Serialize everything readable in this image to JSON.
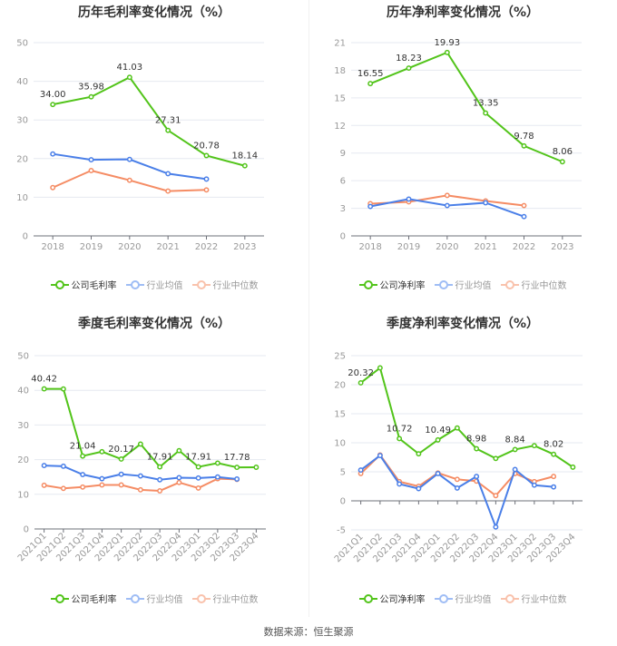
{
  "colors": {
    "company": "#52c41a",
    "avg": "#4a7fe8",
    "median": "#f58c64",
    "grid": "#e6e9f0",
    "axis": "#999999"
  },
  "legend_labels": {
    "annual_gross": [
      "公司毛利率",
      "行业均值",
      "行业中位数"
    ],
    "annual_net": [
      "公司净利率",
      "行业均值",
      "行业中位数"
    ],
    "quarterly_gross": [
      "公司毛利率",
      "行业均值",
      "行业中位数"
    ],
    "quarterly_net": [
      "公司净利率",
      "行业均值",
      "行业中位数"
    ]
  },
  "footer": "数据来源：恒生聚源",
  "chart_data": [
    {
      "type": "line",
      "title": "历年毛利率变化情况（%）",
      "categories": [
        "2018",
        "2019",
        "2020",
        "2021",
        "2022",
        "2023"
      ],
      "ylim": [
        0,
        50
      ],
      "yticks": [
        0,
        10,
        20,
        30,
        40,
        50
      ],
      "legend": "bottom",
      "series": [
        {
          "name": "公司毛利率",
          "values": [
            34.0,
            35.98,
            41.03,
            27.31,
            20.78,
            18.14
          ],
          "labels": [
            "34.00",
            "35.98",
            "41.03",
            "27.31",
            "20.78",
            "18.14"
          ]
        },
        {
          "name": "行业均值",
          "values": [
            21.2,
            19.7,
            19.8,
            16.1,
            14.7,
            null
          ]
        },
        {
          "name": "行业中位数",
          "values": [
            12.5,
            16.9,
            14.4,
            11.6,
            11.9,
            null
          ]
        }
      ]
    },
    {
      "type": "line",
      "title": "历年净利率变化情况（%）",
      "categories": [
        "2018",
        "2019",
        "2020",
        "2021",
        "2022",
        "2023"
      ],
      "ylim": [
        0,
        21
      ],
      "yticks": [
        0,
        3,
        6,
        9,
        12,
        15,
        18,
        21
      ],
      "legend": "bottom",
      "series": [
        {
          "name": "公司净利率",
          "values": [
            16.55,
            18.23,
            19.93,
            13.35,
            9.78,
            8.06
          ],
          "labels": [
            "16.55",
            "18.23",
            "19.93",
            "13.35",
            "9.78",
            "8.06"
          ]
        },
        {
          "name": "行业均值",
          "values": [
            3.2,
            4.0,
            3.3,
            3.6,
            2.1,
            null
          ]
        },
        {
          "name": "行业中位数",
          "values": [
            3.5,
            3.7,
            4.4,
            3.8,
            3.3,
            null
          ]
        }
      ]
    },
    {
      "type": "line",
      "title": "季度毛利率变化情况（%）",
      "categories": [
        "2021Q1",
        "2021Q2",
        "2021Q3",
        "2021Q4",
        "2022Q1",
        "2022Q2",
        "2022Q3",
        "2022Q4",
        "2023Q1",
        "2023Q2",
        "2023Q3",
        "2023Q4"
      ],
      "ylim": [
        0,
        50
      ],
      "yticks": [
        0,
        10,
        20,
        30,
        40,
        50
      ],
      "legend": "bottom",
      "series": [
        {
          "name": "公司毛利率",
          "values": [
            40.42,
            40.4,
            21.04,
            22.3,
            20.17,
            24.5,
            17.91,
            22.6,
            17.91,
            19.0,
            17.78,
            17.8
          ],
          "labels": [
            "40.42",
            null,
            "21.04",
            null,
            "20.17",
            null,
            "17.91",
            null,
            "17.91",
            null,
            "17.78",
            null
          ]
        },
        {
          "name": "行业均值",
          "values": [
            18.3,
            18.1,
            15.7,
            14.5,
            15.8,
            15.3,
            14.2,
            14.8,
            14.7,
            15.0,
            14.4,
            null
          ]
        },
        {
          "name": "行业中位数",
          "values": [
            12.6,
            11.7,
            12.1,
            12.7,
            12.7,
            11.3,
            11.0,
            13.4,
            11.8,
            14.5,
            14.3,
            null
          ]
        }
      ]
    },
    {
      "type": "line",
      "title": "季度净利率变化情况（%）",
      "categories": [
        "2021Q1",
        "2021Q2",
        "2021Q3",
        "2021Q4",
        "2022Q1",
        "2022Q2",
        "2022Q3",
        "2022Q4",
        "2023Q1",
        "2023Q2",
        "2023Q3",
        "2023Q4"
      ],
      "ylim": [
        -5,
        25
      ],
      "yticks": [
        -5,
        0,
        5,
        10,
        15,
        20,
        25
      ],
      "legend": "bottom",
      "series": [
        {
          "name": "公司净利率",
          "values": [
            20.32,
            22.9,
            10.72,
            8.1,
            10.49,
            12.55,
            8.98,
            7.3,
            8.84,
            9.5,
            8.02,
            5.8
          ],
          "labels": [
            "20.32",
            null,
            "10.72",
            null,
            "10.49",
            null,
            "8.98",
            null,
            "8.84",
            null,
            "8.02",
            null
          ]
        },
        {
          "name": "行业均值",
          "values": [
            5.3,
            7.8,
            2.9,
            2.1,
            4.7,
            2.2,
            4.2,
            -4.5,
            5.4,
            2.7,
            2.4,
            null
          ]
        },
        {
          "name": "行业中位数",
          "values": [
            4.7,
            7.9,
            3.3,
            2.5,
            4.8,
            3.7,
            3.4,
            0.9,
            4.7,
            3.3,
            4.2,
            null
          ]
        }
      ]
    }
  ]
}
